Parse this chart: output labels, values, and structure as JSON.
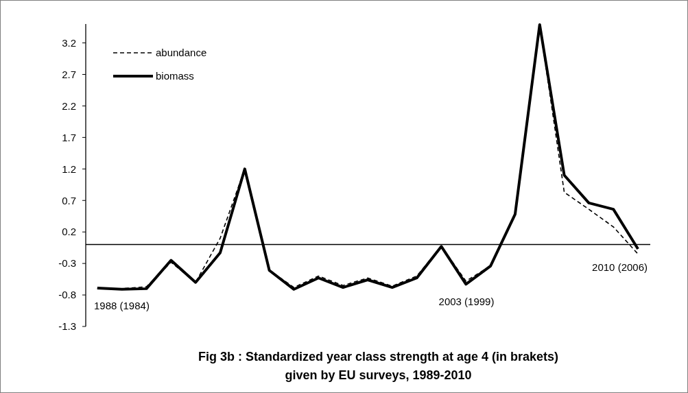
{
  "chart_data": {
    "type": "line",
    "title": "Fig 3b : Standardized year class strength at age 4 (in brakets)\ngiven by EU surveys, 1989-2010",
    "categories": [
      null,
      null,
      null,
      null,
      null,
      null,
      null,
      null,
      null,
      null,
      null,
      null,
      null,
      null,
      null,
      null,
      null,
      null,
      null,
      null,
      null,
      null,
      null
    ],
    "series": [
      {
        "name": "abundance",
        "color": "#000000",
        "line_style": "dashed",
        "values": [
          -0.7,
          -0.7,
          -0.67,
          -0.28,
          -0.6,
          0.1,
          1.2,
          -0.41,
          -0.68,
          -0.5,
          -0.65,
          -0.53,
          -0.66,
          -0.5,
          -0.03,
          -0.58,
          -0.34,
          0.48,
          3.49,
          0.83,
          0.56,
          0.28,
          -0.15
        ]
      },
      {
        "name": "biomass",
        "color": "#000000",
        "line_style": "solid",
        "values": [
          -0.69,
          -0.71,
          -0.7,
          -0.25,
          -0.6,
          -0.13,
          1.2,
          -0.41,
          -0.71,
          -0.53,
          -0.68,
          -0.56,
          -0.68,
          -0.53,
          -0.03,
          -0.63,
          -0.34,
          0.48,
          3.49,
          1.1,
          0.66,
          0.56,
          -0.07
        ]
      }
    ],
    "ylim": [
      -1.3,
      3.5
    ],
    "yticks": [
      -1.3,
      -0.8,
      -0.3,
      0.2,
      0.7,
      1.2,
      1.7,
      2.2,
      2.7,
      3.2
    ],
    "tick_labels": "y",
    "grid": false,
    "legend": "top left",
    "marker": "none",
    "ref_lines": [
      {
        "axis": "y",
        "value": 0
      }
    ],
    "annotations": [
      "1988 (1984)",
      "2003 (1999)",
      "2010 (2006)"
    ]
  }
}
